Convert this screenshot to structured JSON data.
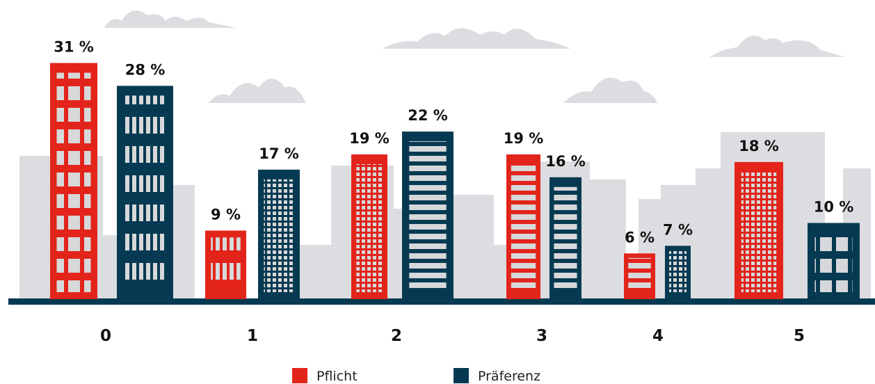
{
  "chart_data": {
    "type": "bar",
    "categories": [
      "0",
      "1",
      "2",
      "3",
      "4",
      "5"
    ],
    "series": [
      {
        "name": "Pflicht",
        "color": "#e2241b",
        "values": [
          31,
          9,
          19,
          19,
          6,
          18
        ],
        "value_labels": [
          "31 %",
          "9 %",
          "19 %",
          "19 %",
          "6 %",
          "18 %"
        ]
      },
      {
        "name": "Präferenz",
        "color": "#063a52",
        "values": [
          28,
          17,
          22,
          16,
          7,
          10
        ],
        "value_labels": [
          "28 %",
          "17 %",
          "22 %",
          "16 %",
          "7 %",
          "10 %"
        ]
      }
    ]
  }
}
